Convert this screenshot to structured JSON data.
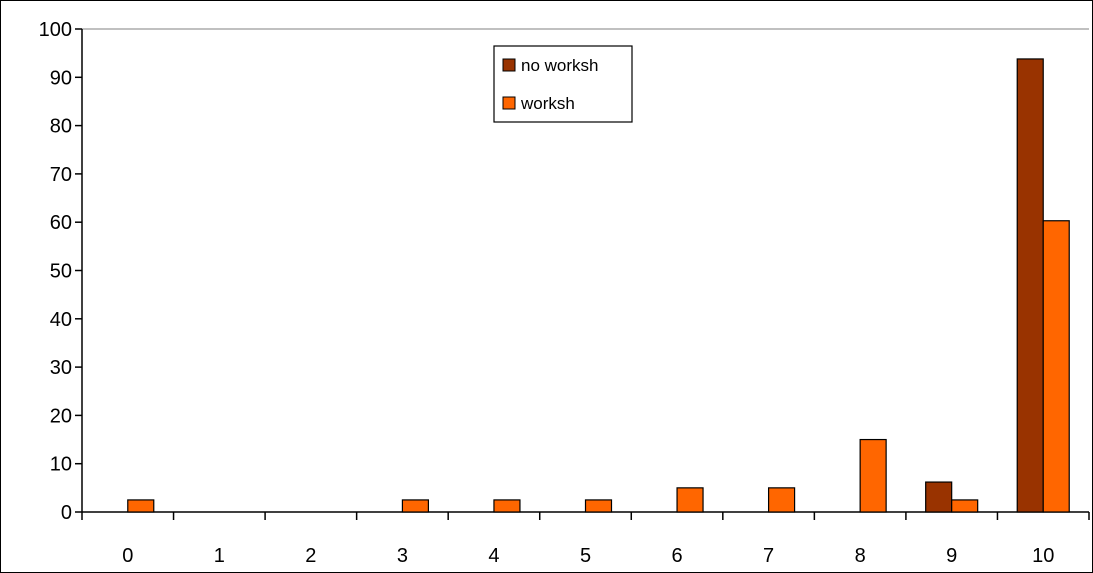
{
  "chart_data": {
    "type": "bar",
    "categories": [
      "0",
      "1",
      "2",
      "3",
      "4",
      "5",
      "6",
      "7",
      "8",
      "9",
      "10"
    ],
    "series": [
      {
        "name": "no worksh",
        "color": "#993300",
        "values": [
          0,
          0,
          0,
          0,
          0,
          0,
          0,
          0,
          0,
          6.2,
          93.8
        ]
      },
      {
        "name": "worksh",
        "color": "#ff6600",
        "values": [
          2.5,
          0,
          0,
          2.5,
          2.5,
          2.5,
          5,
          5,
          15,
          2.5,
          60.3
        ]
      }
    ],
    "title": "",
    "xlabel": "",
    "ylabel": "",
    "ylim": [
      0,
      100
    ],
    "yticks": [
      0,
      10,
      20,
      30,
      40,
      50,
      60,
      70,
      80,
      90,
      100
    ],
    "grid": false,
    "legend_position": "top-center"
  }
}
